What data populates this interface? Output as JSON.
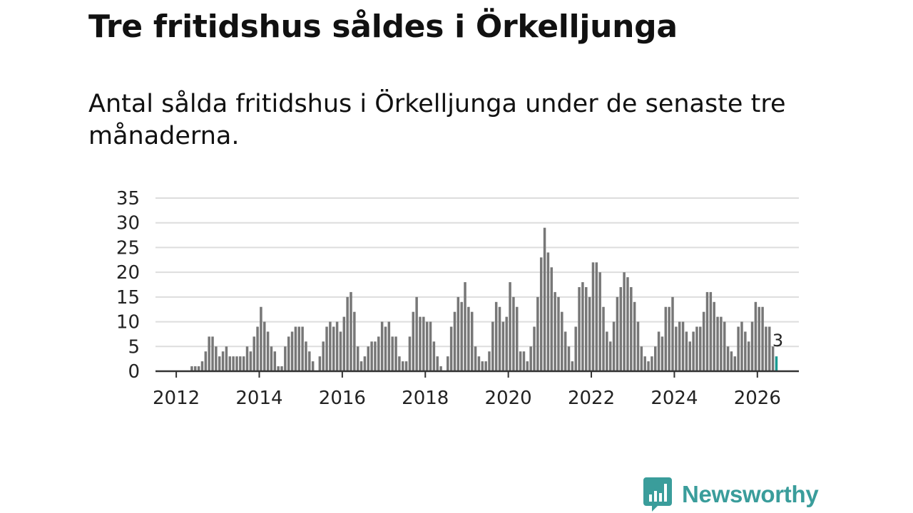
{
  "header": {
    "title": "Tre fritidshus såldes i Örkelljunga",
    "subtitle": "Antal sålda fritidshus i Örkelljunga under de senaste tre månaderna."
  },
  "brand": {
    "name": "Newsworthy",
    "color": "#3a9d9b",
    "icon": "newsworthy-bar-chart-icon"
  },
  "colors": {
    "bar": "#777777",
    "highlight": "#1a9a92",
    "grid": "#dddddd",
    "axis": "#333333"
  },
  "chart_data": {
    "type": "bar",
    "title": "Tre fritidshus såldes i Örkelljunga",
    "subtitle": "Antal sålda fritidshus i Örkelljunga under de senaste tre månaderna.",
    "xlabel": "",
    "ylabel": "",
    "ylim": [
      0,
      35
    ],
    "yticks": [
      0,
      5,
      10,
      15,
      20,
      25,
      30,
      35
    ],
    "x_start": "2011-07",
    "x_interval": "month",
    "x_range": [
      2011.5,
      2027.0
    ],
    "xticks": [
      {
        "label": "2012",
        "value": 2012
      },
      {
        "label": "2014",
        "value": 2014
      },
      {
        "label": "2016",
        "value": 2016
      },
      {
        "label": "2018",
        "value": 2018
      },
      {
        "label": "2020",
        "value": 2020
      },
      {
        "label": "2022",
        "value": 2022
      },
      {
        "label": "2024",
        "value": 2024
      },
      {
        "label": "2026",
        "value": 2026
      }
    ],
    "grid": true,
    "highlight_last": true,
    "last_value_label": "3",
    "values": [
      0,
      0,
      0,
      0,
      0,
      0,
      0,
      0,
      0,
      0,
      1,
      1,
      1,
      2,
      4,
      7,
      7,
      5,
      3,
      4,
      5,
      3,
      3,
      3,
      3,
      3,
      5,
      4,
      7,
      9,
      13,
      10,
      8,
      5,
      4,
      1,
      1,
      5,
      7,
      8,
      9,
      9,
      9,
      6,
      4,
      2,
      0,
      3,
      6,
      9,
      10,
      9,
      10,
      8,
      11,
      15,
      16,
      12,
      5,
      2,
      3,
      5,
      6,
      6,
      7,
      10,
      9,
      10,
      7,
      7,
      3,
      2,
      2,
      7,
      12,
      15,
      11,
      11,
      10,
      10,
      6,
      3,
      1,
      0,
      3,
      9,
      12,
      15,
      14,
      18,
      13,
      12,
      5,
      3,
      2,
      2,
      4,
      10,
      14,
      13,
      10,
      11,
      18,
      15,
      13,
      4,
      4,
      2,
      5,
      9,
      15,
      23,
      29,
      24,
      21,
      16,
      15,
      12,
      8,
      5,
      2,
      9,
      17,
      18,
      17,
      15,
      22,
      22,
      20,
      13,
      8,
      6,
      10,
      15,
      17,
      20,
      19,
      17,
      14,
      10,
      5,
      3,
      2,
      3,
      5,
      8,
      7,
      13,
      13,
      15,
      9,
      10,
      10,
      8,
      6,
      8,
      9,
      9,
      12,
      16,
      16,
      14,
      11,
      11,
      10,
      5,
      4,
      3,
      9,
      10,
      8,
      6,
      10,
      14,
      13,
      13,
      9,
      9,
      5,
      3
    ]
  }
}
